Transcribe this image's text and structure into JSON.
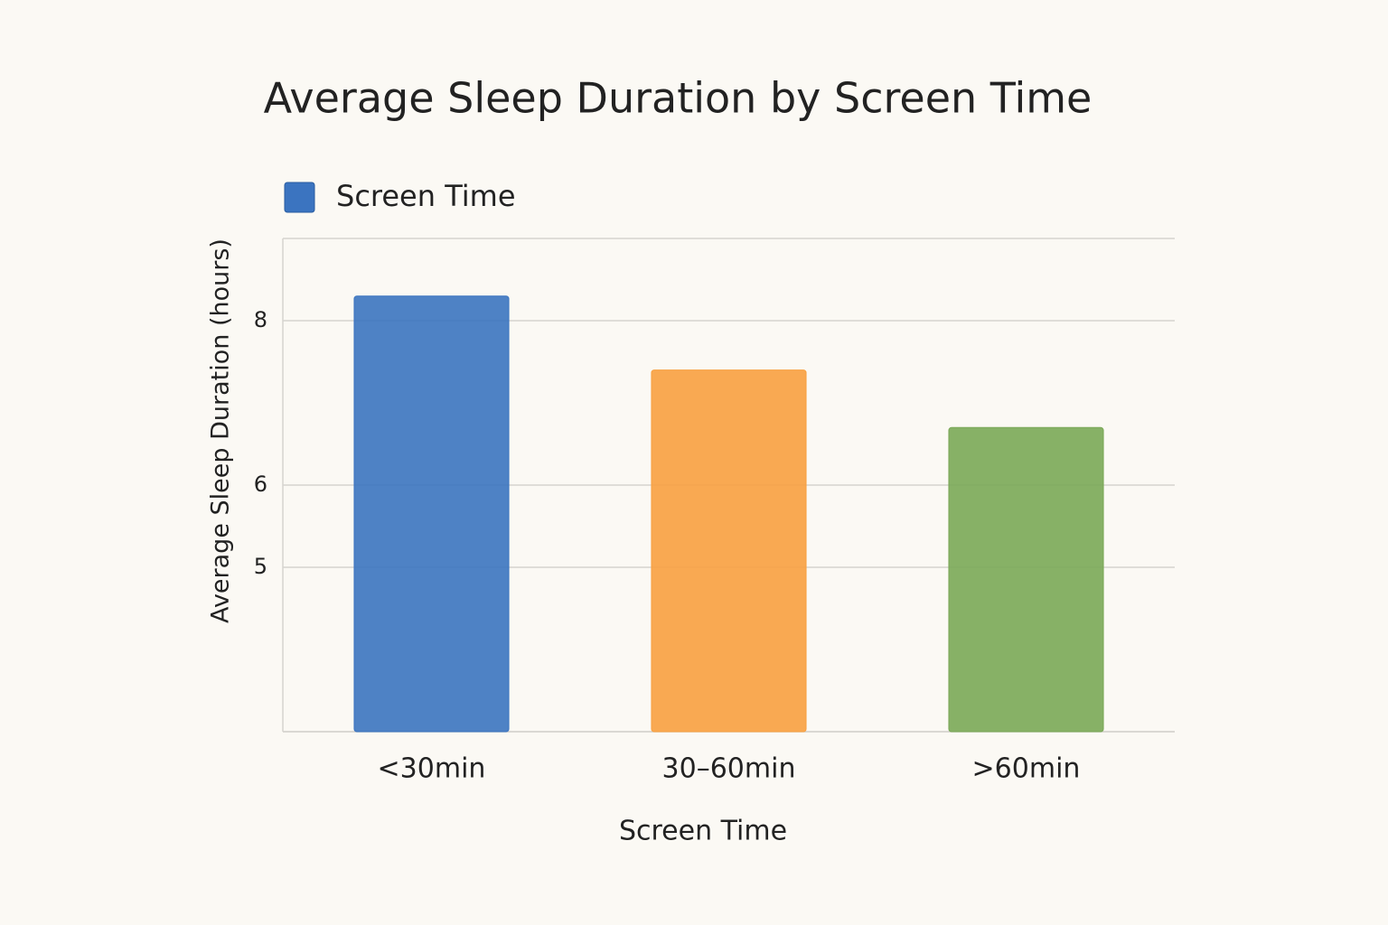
{
  "chart_data": {
    "type": "bar",
    "title": "Average Sleep Duration by Screen Time",
    "x_label": "Screen Time",
    "y_label": "Average Sleep Duration (hours)",
    "categories": [
      "<30min",
      "30–60min",
      ">60min"
    ],
    "series": [
      {
        "name": "Screen Time",
        "color": "#3b74c0",
        "colors": [
          "#3b74c0",
          "#f8a040",
          "#7aa857"
        ],
        "values": [
          8.3,
          7.4,
          6.7
        ]
      }
    ],
    "ylim": [
      3,
      9
    ],
    "yticks": [
      5,
      6,
      8
    ],
    "grid": true,
    "legend": "top-left"
  }
}
